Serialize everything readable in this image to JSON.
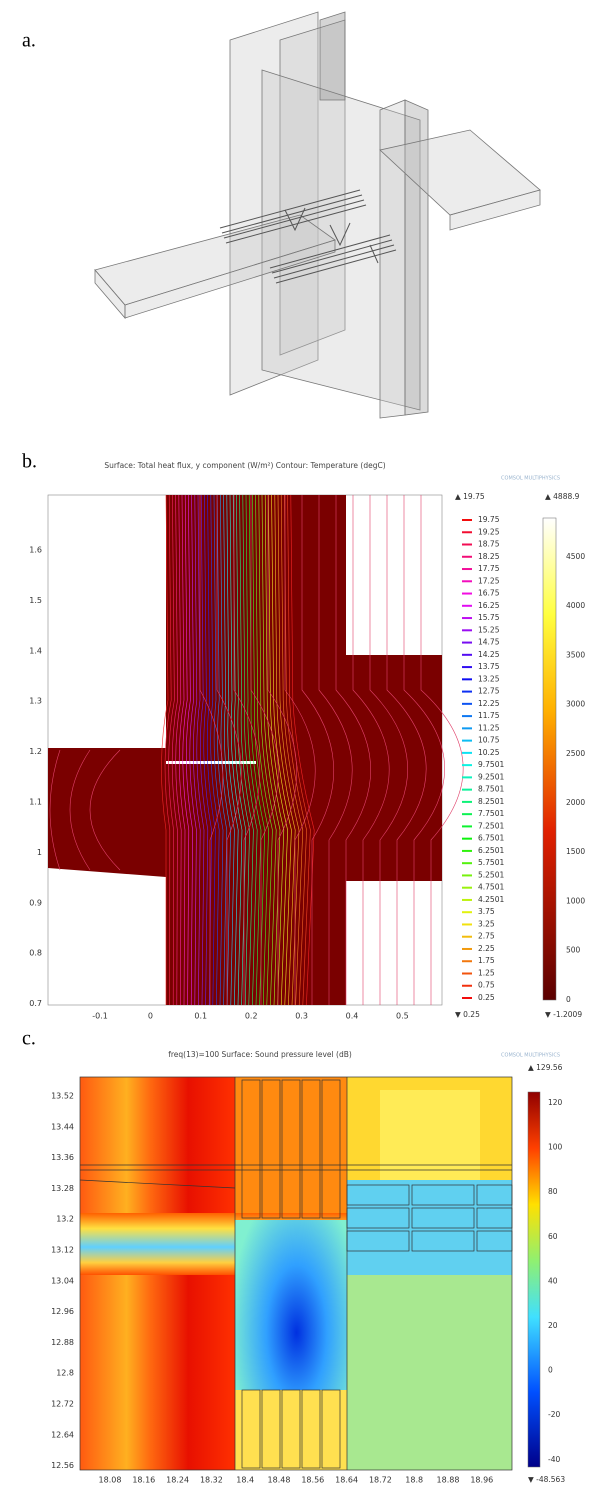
{
  "panels": {
    "a": {
      "label": "a."
    },
    "b": {
      "label": "b.",
      "title": "Surface: Total heat flux, y component (W/m²) Contour: Temperature (degC)",
      "logo": "COMSOL MULTIPHYSICS",
      "y_ticks": [
        "1.6",
        "1.5",
        "1.4",
        "1.3",
        "1.2",
        "1.1",
        "1",
        "0.9",
        "0.8",
        "0.7"
      ],
      "x_ticks": [
        "-0.1",
        "0",
        "0.1",
        "0.2",
        "0.3",
        "0.4",
        "0.5"
      ],
      "contour_top": "▲ 19.75",
      "contour_levels": [
        "19.75",
        "19.25",
        "18.75",
        "18.25",
        "17.75",
        "17.25",
        "16.75",
        "16.25",
        "15.75",
        "15.25",
        "14.75",
        "14.25",
        "13.75",
        "13.25",
        "12.75",
        "12.25",
        "11.75",
        "11.25",
        "10.75",
        "10.25",
        "9.7501",
        "9.2501",
        "8.7501",
        "8.2501",
        "7.7501",
        "7.2501",
        "6.7501",
        "6.2501",
        "5.7501",
        "5.2501",
        "4.7501",
        "4.2501",
        "3.75",
        "3.25",
        "2.75",
        "2.25",
        "1.75",
        "1.25",
        "0.75",
        "0.25"
      ],
      "contour_bottom": "▼ 0.25",
      "colorbar_top": "▲ 4888.9",
      "colorbar_ticks": [
        "4500",
        "4000",
        "3500",
        "3000",
        "2500",
        "2000",
        "1500",
        "1000",
        "500",
        "0"
      ],
      "colorbar_bottom": "▼ -1.2009"
    },
    "c": {
      "label": "c.",
      "title": "freq(13)=100 Surface: Sound pressure level (dB)",
      "logo": "COMSOL MULTIPHYSICS",
      "y_ticks": [
        "13.52",
        "13.44",
        "13.36",
        "13.28",
        "13.2",
        "13.12",
        "13.04",
        "12.96",
        "12.88",
        "12.8",
        "12.72",
        "12.64",
        "12.56"
      ],
      "x_ticks": [
        "18.08",
        "18.16",
        "18.24",
        "18.32",
        "18.4",
        "18.48",
        "18.56",
        "18.64",
        "18.72",
        "18.8",
        "18.88",
        "18.96"
      ],
      "colorbar_top": "▲ 129.56",
      "colorbar_ticks": [
        "120",
        "100",
        "80",
        "60",
        "40",
        "20",
        "0",
        "-20",
        "-40"
      ],
      "colorbar_bottom": "▼ -48.563"
    }
  }
}
